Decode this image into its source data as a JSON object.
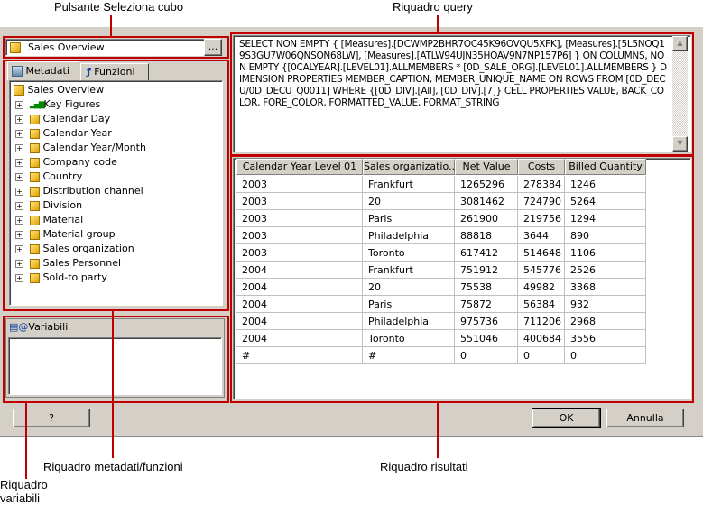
{
  "callouts": {
    "cube_button": "Pulsante Seleziona cubo",
    "query_pane": "Riquadro query",
    "variables_pane": "Riquadro\nvariabili",
    "metadata_pane": "Riquadro metadati/funzioni",
    "results_pane": "Riquadro risultati"
  },
  "cube_selector": {
    "value": "Sales Overview",
    "browse_label": "..."
  },
  "tabs": [
    {
      "label": "Metadati",
      "icon": "cube-stack-icon",
      "active": true
    },
    {
      "label": "Funzioni",
      "icon": "function-icon",
      "active": false
    }
  ],
  "tree": {
    "root": "Sales Overview",
    "items": [
      {
        "label": "Key Figures",
        "icon": "bar-chart-icon"
      },
      {
        "label": "Calendar Day",
        "icon": "dimension-icon"
      },
      {
        "label": "Calendar Year",
        "icon": "dimension-icon"
      },
      {
        "label": "Calendar Year/Month",
        "icon": "dimension-icon"
      },
      {
        "label": "Company code",
        "icon": "dimension-icon"
      },
      {
        "label": "Country",
        "icon": "dimension-icon"
      },
      {
        "label": "Distribution channel",
        "icon": "dimension-icon"
      },
      {
        "label": "Division",
        "icon": "dimension-icon"
      },
      {
        "label": "Material",
        "icon": "dimension-icon"
      },
      {
        "label": "Material group",
        "icon": "dimension-icon"
      },
      {
        "label": "Sales organization",
        "icon": "dimension-icon"
      },
      {
        "label": "Sales Personnel",
        "icon": "dimension-icon"
      },
      {
        "label": "Sold-to party",
        "icon": "dimension-icon"
      }
    ]
  },
  "variables": {
    "header": "Variabili"
  },
  "query": "SELECT NON EMPTY { [Measures].[DCWMP2BHR7OC45K96OVQU5XFK], [Measures].[5L5NOQ19S3GU7W06QNSON68LW], [Measures].[ATLW94UJN35HOAV9N7NP157P6] } ON COLUMNS, NON EMPTY {[0CALYEAR].[LEVEL01].ALLMEMBERS * [0D_SALE_ORG].[LEVEL01].ALLMEMBERS } DIMENSION PROPERTIES MEMBER_CAPTION, MEMBER_UNIQUE_NAME ON ROWS FROM [0D_DECU/0D_DECU_Q0011] WHERE {[0D_DIV].[All], [0D_DIV].[7]} CELL PROPERTIES VALUE, BACK_COLOR, FORE_COLOR, FORMATTED_VALUE, FORMAT_STRING",
  "results": {
    "columns": [
      "Calendar Year Level 01",
      "Sales organizatio...",
      "Net Value",
      "Costs",
      "Billed Quantity"
    ],
    "rows": [
      [
        "2003",
        "Frankfurt",
        "1265296",
        "278384",
        "1246"
      ],
      [
        "2003",
        "20",
        "3081462",
        "724790",
        "5264"
      ],
      [
        "2003",
        "Paris",
        "261900",
        "219756",
        "1294"
      ],
      [
        "2003",
        "Philadelphia",
        "88818",
        "3644",
        "890"
      ],
      [
        "2003",
        "Toronto",
        "617412",
        "514648",
        "1106"
      ],
      [
        "2004",
        "Frankfurt",
        "751912",
        "545776",
        "2526"
      ],
      [
        "2004",
        "20",
        "75538",
        "49982",
        "3368"
      ],
      [
        "2004",
        "Paris",
        "75872",
        "56384",
        "932"
      ],
      [
        "2004",
        "Philadelphia",
        "975736",
        "711206",
        "2968"
      ],
      [
        "2004",
        "Toronto",
        "551046",
        "400684",
        "3556"
      ],
      [
        "#",
        "#",
        "0",
        "0",
        "0"
      ]
    ]
  },
  "buttons": {
    "help": "?",
    "ok": "OK",
    "cancel": "Annulla"
  },
  "colors": {
    "callout": "#c00000",
    "dialog": "#d4d0c8"
  }
}
